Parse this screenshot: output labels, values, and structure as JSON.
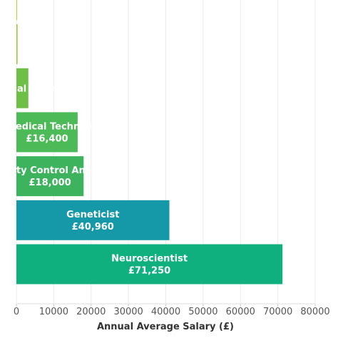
{
  "chart_data": {
    "type": "bar",
    "orientation": "horizontal",
    "title": "",
    "xlabel": "Annual Average Salary (£)",
    "ylabel": "",
    "xlim": [
      0,
      80000
    ],
    "xticks": [
      0,
      10000,
      20000,
      30000,
      40000,
      50000,
      60000,
      70000,
      80000
    ],
    "xtick_labels": [
      "0",
      "10000",
      "20000",
      "30000",
      "40000",
      "50000",
      "60000",
      "70000",
      "80000"
    ],
    "grid": "vertical",
    "categories": [
      "Neuroscientist",
      "Geneticist",
      "Quality Control Analyst",
      "Biomedical Technician",
      "Biomedical Scientist",
      "",
      ""
    ],
    "values": [
      71250,
      40960,
      18000,
      16400,
      3200,
      300,
      150
    ],
    "value_labels": [
      "£71,250",
      "£40,960",
      "£18,000",
      "£16,400",
      "",
      "",
      ""
    ],
    "colors": [
      "#0fb07d",
      "#1598a8",
      "#3db35e",
      "#4dba58",
      "#6dbf45",
      "#9cc53c",
      "#c7cc36"
    ]
  }
}
